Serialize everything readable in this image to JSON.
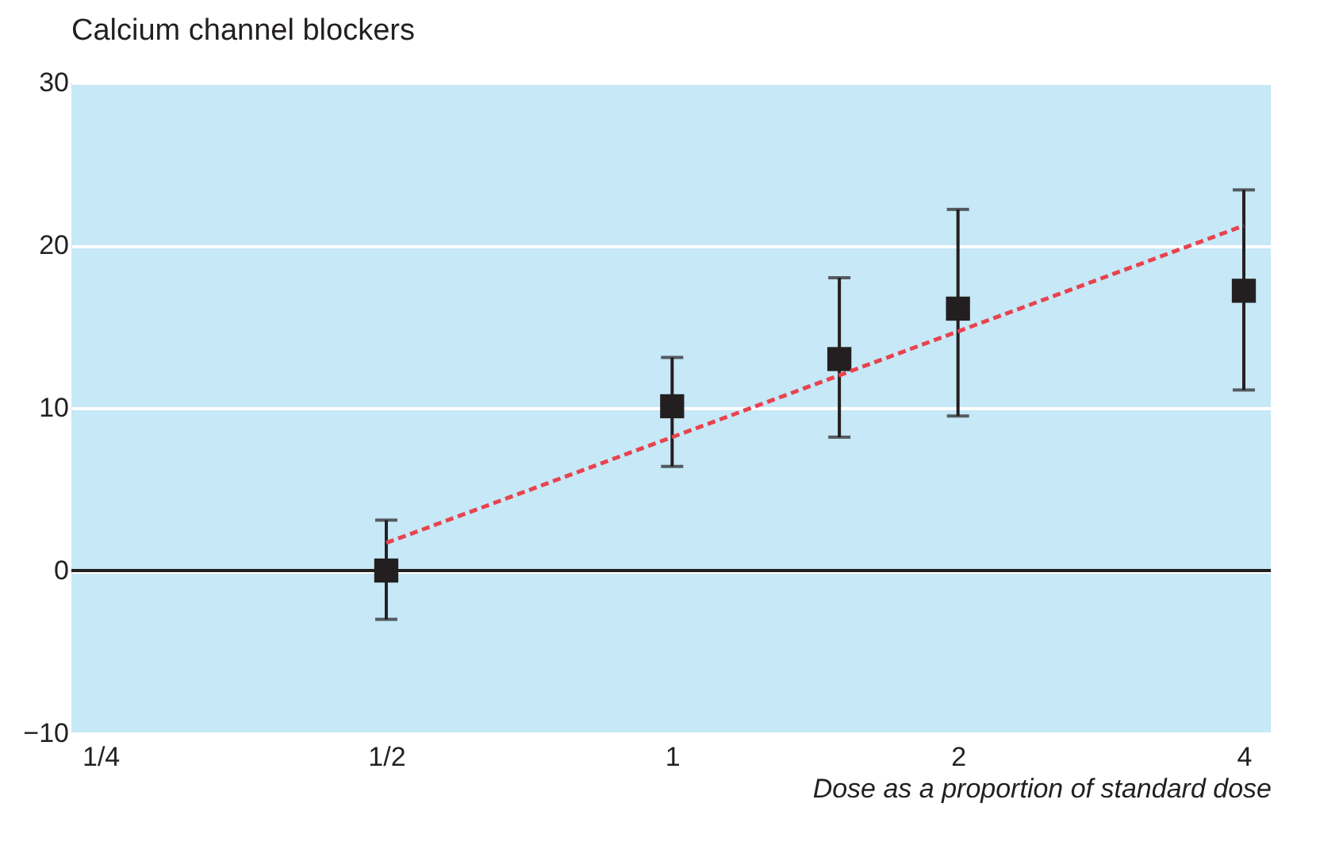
{
  "chart_data": {
    "type": "scatter",
    "title": "Calcium channel blockers",
    "xlabel": "Dose as a proportion of standard dose",
    "x": [
      0.5,
      1,
      1.5,
      2,
      4
    ],
    "log": "x",
    "xlim": [
      0.233,
      4.27
    ],
    "ylim": [
      -10,
      30
    ],
    "xticks": [
      {
        "value": 0.25,
        "label": "1/4"
      },
      {
        "value": 0.5,
        "label": "1/2"
      },
      1,
      2,
      4
    ],
    "yticks": [
      -10,
      0,
      10,
      20,
      30
    ],
    "grid": "y",
    "series": [
      {
        "marker": "square",
        "color": "#231f20",
        "values": [
          0,
          10.1,
          13.0,
          16.1,
          17.2
        ],
        "errors": [
          [
            -3.0,
            3.1
          ],
          [
            6.4,
            13.1
          ],
          [
            8.2,
            18.0
          ],
          [
            9.5,
            22.2
          ],
          [
            11.1,
            23.4
          ]
        ]
      },
      {
        "type": "line",
        "color": "#e8434e",
        "line_style": "dashed",
        "x": [
          0.5,
          4
        ],
        "values": [
          1.7,
          21.2
        ]
      }
    ],
    "ref_lines": [
      {
        "axis": "y",
        "value": 0,
        "color": "#231f20"
      }
    ]
  }
}
